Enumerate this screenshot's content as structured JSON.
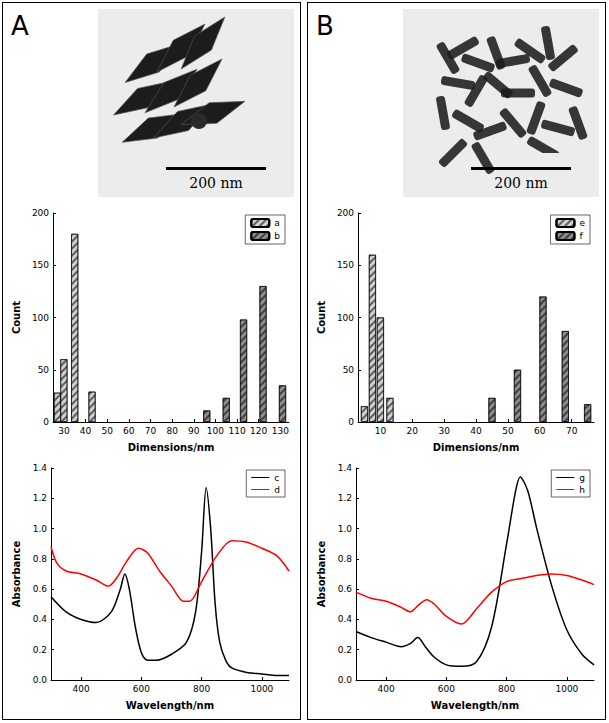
{
  "panels": [
    {
      "label": "A",
      "scale_bar": "200 nm"
    },
    {
      "label": "B",
      "scale_bar": "200 nm"
    }
  ],
  "chart_data": [
    {
      "type": "bar",
      "xlabel": "Dimensions/nm",
      "ylabel": "Count",
      "xlim": [
        25,
        134
      ],
      "xticks": [
        30,
        40,
        50,
        60,
        70,
        80,
        90,
        100,
        110,
        120,
        130
      ],
      "ylim": [
        0,
        200
      ],
      "yticks": [
        0,
        50,
        100,
        150,
        200
      ],
      "grid": false,
      "legend": "upper right",
      "series": [
        {
          "name": "a",
          "color": "#d0d0d0",
          "x": [
            27,
            30,
            35,
            43
          ],
          "values": [
            28,
            60,
            180,
            29
          ]
        },
        {
          "name": "b",
          "color": "#8c8c8c",
          "x": [
            96,
            105,
            113,
            122,
            131
          ],
          "values": [
            11,
            23,
            98,
            130,
            35
          ]
        }
      ]
    },
    {
      "type": "line",
      "xlabel": "Wavelength/nm",
      "ylabel": "Absorbance",
      "xlim": [
        300,
        1090
      ],
      "xticks": [
        400,
        600,
        800,
        1000
      ],
      "ylim": [
        0,
        1.4
      ],
      "yticks": [
        {
          "value": 0,
          "label": "0.0"
        },
        0.2,
        0.4,
        0.6,
        0.8,
        {
          "value": 1,
          "label": "1.0"
        },
        1.2,
        1.4
      ],
      "grid": false,
      "legend": "upper right",
      "series": [
        {
          "name": "c",
          "color": "#000000",
          "x": [
            300,
            350,
            400,
            450,
            500,
            530,
            545,
            560,
            580,
            600,
            620,
            650,
            700,
            750,
            780,
            800,
            815,
            830,
            845,
            860,
            880,
            900,
            950,
            1000,
            1050,
            1090
          ],
          "values": [
            0.55,
            0.45,
            0.4,
            0.38,
            0.45,
            0.6,
            0.7,
            0.6,
            0.35,
            0.18,
            0.13,
            0.13,
            0.17,
            0.25,
            0.45,
            0.85,
            1.27,
            1.0,
            0.5,
            0.25,
            0.13,
            0.08,
            0.05,
            0.04,
            0.03,
            0.03
          ]
        },
        {
          "name": "d",
          "color": "#ff0000",
          "x": [
            300,
            320,
            350,
            400,
            450,
            490,
            520,
            550,
            590,
            620,
            660,
            700,
            740,
            760,
            800,
            850,
            900,
            950,
            1000,
            1050,
            1090
          ],
          "values": [
            0.88,
            0.77,
            0.72,
            0.7,
            0.66,
            0.62,
            0.68,
            0.78,
            0.87,
            0.84,
            0.72,
            0.62,
            0.52,
            0.52,
            0.65,
            0.82,
            0.92,
            0.91,
            0.87,
            0.82,
            0.72
          ]
        }
      ]
    },
    {
      "type": "bar",
      "xlabel": "Dimensions/nm",
      "ylabel": "Count",
      "xlim": [
        3,
        77
      ],
      "xticks": [
        10,
        20,
        30,
        40,
        50,
        60,
        70
      ],
      "ylim": [
        0,
        200
      ],
      "yticks": [
        0,
        50,
        100,
        150,
        200
      ],
      "grid": false,
      "legend": "upper right",
      "series": [
        {
          "name": "e",
          "color": "#d0d0d0",
          "x": [
            5,
            7.5,
            10,
            13
          ],
          "values": [
            15,
            160,
            100,
            23
          ]
        },
        {
          "name": "f",
          "color": "#8c8c8c",
          "x": [
            45,
            53,
            61,
            68,
            75
          ],
          "values": [
            23,
            50,
            120,
            87,
            17
          ]
        }
      ]
    },
    {
      "type": "line",
      "xlabel": "Wavelength/nm",
      "ylabel": "Absorbance",
      "xlim": [
        300,
        1090
      ],
      "xticks": [
        400,
        600,
        800,
        1000
      ],
      "ylim": [
        0,
        1.4
      ],
      "yticks": [
        {
          "value": 0,
          "label": "0.0"
        },
        0.2,
        0.4,
        0.6,
        0.8,
        {
          "value": 1,
          "label": "1.0"
        },
        1.2,
        1.4
      ],
      "grid": false,
      "legend": "upper right",
      "series": [
        {
          "name": "g",
          "color": "#000000",
          "x": [
            300,
            350,
            400,
            450,
            480,
            505,
            530,
            560,
            600,
            650,
            700,
            750,
            800,
            830,
            845,
            870,
            900,
            950,
            1000,
            1050,
            1090
          ],
          "values": [
            0.32,
            0.28,
            0.25,
            0.22,
            0.24,
            0.28,
            0.22,
            0.15,
            0.1,
            0.09,
            0.12,
            0.35,
            0.9,
            1.25,
            1.34,
            1.25,
            1.0,
            0.62,
            0.33,
            0.17,
            0.1
          ]
        },
        {
          "name": "h",
          "color": "#ff0000",
          "x": [
            300,
            350,
            400,
            450,
            480,
            510,
            535,
            560,
            600,
            650,
            700,
            750,
            800,
            850,
            900,
            950,
            1000,
            1050,
            1090
          ],
          "values": [
            0.58,
            0.54,
            0.52,
            0.48,
            0.45,
            0.5,
            0.53,
            0.5,
            0.42,
            0.37,
            0.47,
            0.58,
            0.65,
            0.67,
            0.69,
            0.7,
            0.69,
            0.66,
            0.63
          ]
        }
      ]
    }
  ]
}
